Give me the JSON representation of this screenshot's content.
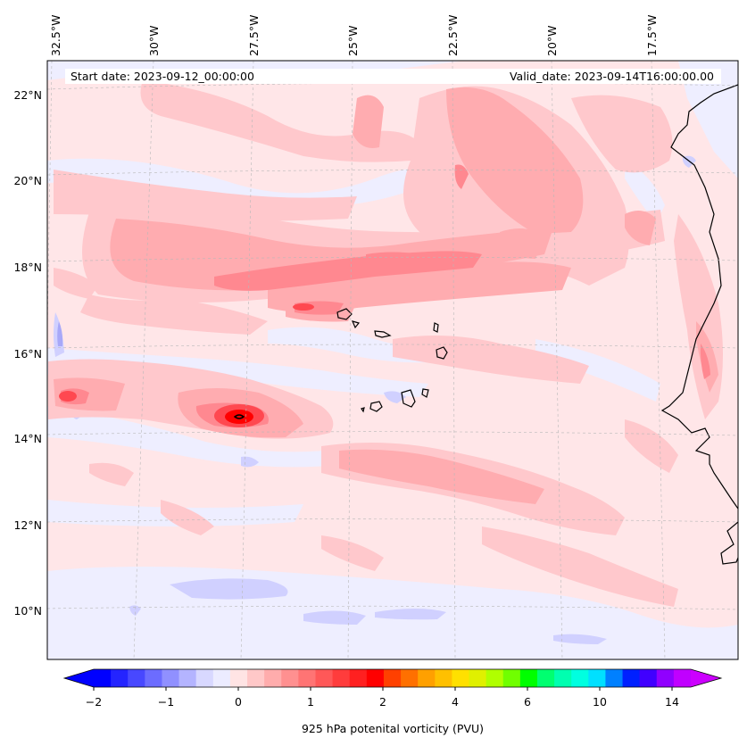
{
  "header": {
    "start_date": "Start date: 2023-09-12_00:00:00",
    "valid_date": "Valid_date: 2023-09-14T16:00:00.00"
  },
  "axes": {
    "lon_labels": [
      "32.5°W",
      "30°W",
      "27.5°W",
      "25°W",
      "22.5°W",
      "20°W",
      "17.5°W"
    ],
    "lat_labels": [
      "22°N",
      "20°N",
      "18°N",
      "16°N",
      "14°N",
      "12°N",
      "10°N"
    ],
    "gridlines": true
  },
  "colorbar": {
    "label": "925 hPa potenital vorticity (PVU)",
    "tick_labels": [
      "−2",
      "−1",
      "0",
      "1",
      "2",
      "4",
      "6",
      "10",
      "14"
    ],
    "colors": [
      "#0000ff",
      "#2424ff",
      "#4848ff",
      "#6c6cff",
      "#9090ff",
      "#b4b4ff",
      "#d8d8ff",
      "#ececff",
      "#ffe4e4",
      "#ffc8c8",
      "#ffacac",
      "#ff9090",
      "#ff7474",
      "#ff5858",
      "#ff3c3c",
      "#ff2020",
      "#ff0000",
      "#ff4000",
      "#ff7000",
      "#ffa000",
      "#ffc000",
      "#ffe000",
      "#e0f000",
      "#b0ff00",
      "#70ff00",
      "#00ff00",
      "#00ff70",
      "#00ffb0",
      "#00ffe0",
      "#00e0ff",
      "#0080ff",
      "#0020ff",
      "#4000ff",
      "#9000ff",
      "#c000ff"
    ],
    "under_color": "#0000ff",
    "over_color": "#cc00ff"
  },
  "palette": {
    "background": "#ffe6e8",
    "light_pink": "#ffc8cc",
    "pink": "#ffacb0",
    "salmon": "#ff8890",
    "red": "#ff4850",
    "deep_red": "#ff0000",
    "light_blue": "#eeeeff",
    "blue": "#d0d0ff",
    "mid_blue": "#a8a8f8"
  }
}
